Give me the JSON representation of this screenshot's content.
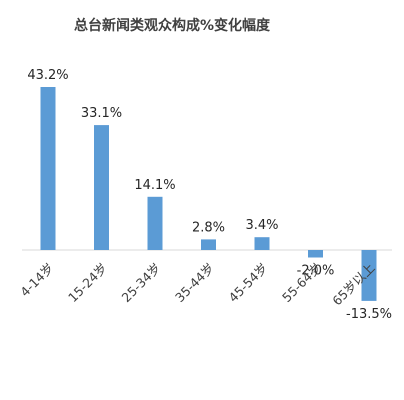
{
  "chart_data": {
    "type": "bar",
    "title": "总台新闻类观众构成%变化幅度",
    "categories": [
      "4-14岁",
      "15-24岁",
      "25-34岁",
      "35-44岁",
      "45-54岁",
      "55-64岁",
      "65岁以上"
    ],
    "values": [
      43.2,
      33.1,
      14.1,
      2.8,
      3.4,
      -2.0,
      -13.5
    ],
    "data_labels": [
      "43.2%",
      "33.1%",
      "14.1%",
      "2.8%",
      "3.4%",
      "-2.0%",
      "-13.5%"
    ],
    "xlabel": "",
    "ylabel": "",
    "ylim": [
      -13.5,
      43.2
    ],
    "grid": false,
    "legend": "none",
    "bar_color": "#5b9bd5"
  }
}
